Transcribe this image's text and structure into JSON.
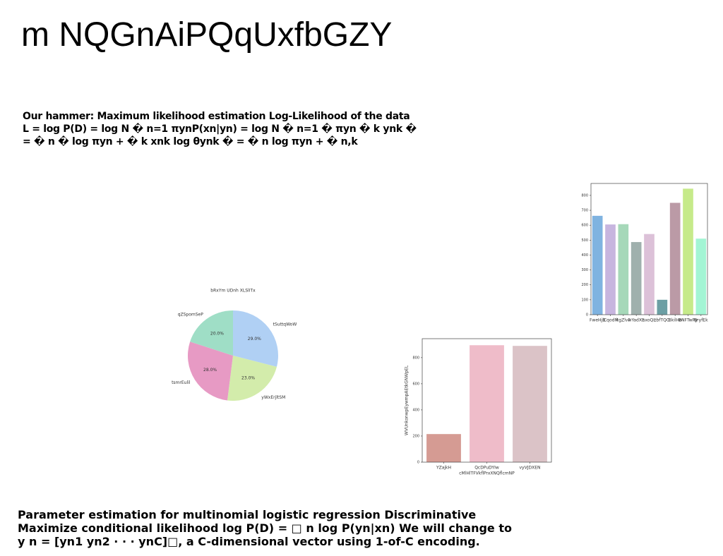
{
  "title": "m NQGnAiPQqUxfbGZY",
  "paragraphs": [
    "Our hammer: Maximum likelihood estimation Log-Likelihood of the data L = log P(D) = log N � n=1 πynP(xn|yn) = log N � n=1 � πyn � k ynk � = � n � log πyn + � k xnk log θynk � = � n log πyn + � n,k",
    "Parameter estimation for multinomial logistic regression Discriminative Maximize conditional likelihood log P(D) = □ n log P(yn|xn) We will change to y n = [yn1 yn2 · · · ynC]□, a C-dimensional vector using 1-of-C encoding."
  ],
  "chart_data": [
    {
      "type": "pie",
      "title": "bRxYm UDnh XLSlITx",
      "categories": [
        "tSuttqWoW",
        "yWxErjltSM",
        "tsmrEulil",
        "qZSpomSeP"
      ],
      "values": [
        29,
        23,
        28,
        20
      ],
      "value_labels": [
        "29.0%",
        "23.0%",
        "28.0%",
        "20.0%"
      ],
      "colors": [
        "#b0d0f4",
        "#d3ecab",
        "#e79ac4",
        "#9fdec6"
      ]
    },
    {
      "type": "bar",
      "categories": [
        "FweHjB",
        "lCqodM",
        "kgZlvF",
        "wYadXE",
        "sxoQL",
        "tbfTQO",
        "BkilHo",
        "BNFTwRy",
        "BryfEk"
      ],
      "values": [
        663,
        605,
        607,
        487,
        541,
        100,
        750,
        845,
        510
      ],
      "colors": [
        "#7fb3e0",
        "#c7b5df",
        "#a6d8b9",
        "#9fb0ad",
        "#dcc1d8",
        "#6c9fa4",
        "#bb9aa6",
        "#c6ea8a",
        "#a3f5d4"
      ],
      "ylim": [
        0,
        880
      ],
      "yticks": [
        0,
        100,
        200,
        300,
        400,
        500,
        600,
        700,
        800
      ]
    },
    {
      "type": "bar",
      "xlabel": "cMlHlTFVkflPrxXNQflcmNP",
      "ylabel": "WVUnkonwpEywmpAEtkGNWpEL",
      "categories": [
        "YZajkH",
        "QcDPuDYIw",
        "vyVJDXEN"
      ],
      "values": [
        215,
        895,
        890
      ],
      "colors": [
        "#d59b93",
        "#efbcc9",
        "#dbc3c7"
      ],
      "ylim": [
        0,
        945
      ],
      "yticks": [
        0,
        200,
        400,
        600,
        800
      ]
    }
  ]
}
